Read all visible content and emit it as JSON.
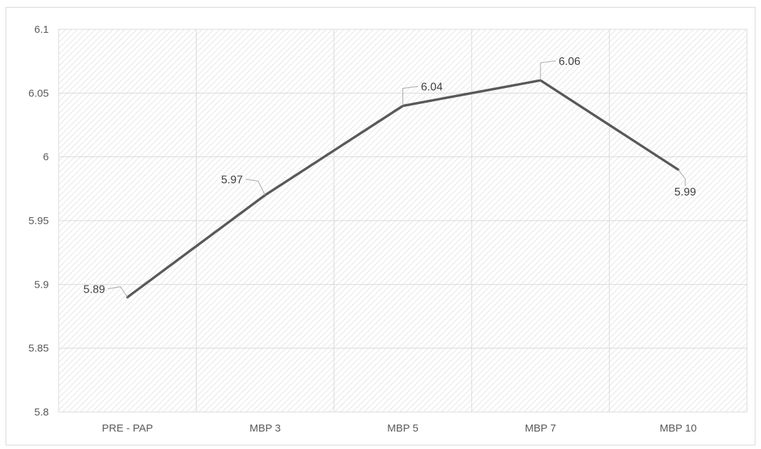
{
  "chart_data": {
    "type": "line",
    "title": "",
    "xlabel": "",
    "ylabel": "",
    "categories": [
      "PRE - PAP",
      "MBP 3",
      "MBP 5",
      "MBP 7",
      "MBP 10"
    ],
    "series": [
      {
        "values": [
          5.89,
          5.97,
          6.04,
          6.06,
          5.99
        ]
      }
    ],
    "data_labels": [
      "5.89",
      "5.97",
      "6.04",
      "6.06",
      "5.99"
    ],
    "ylim": [
      5.8,
      6.1
    ],
    "y_ticks": [
      "5.8",
      "5.85",
      "5.9",
      "5.95",
      "6",
      "6.05",
      "6.1"
    ],
    "grid": true,
    "legend": "none",
    "colors": {
      "line": "#595959",
      "grid": "#d9d9d9",
      "plot_hatch": "#e6e6e6",
      "text": "#595959"
    }
  }
}
